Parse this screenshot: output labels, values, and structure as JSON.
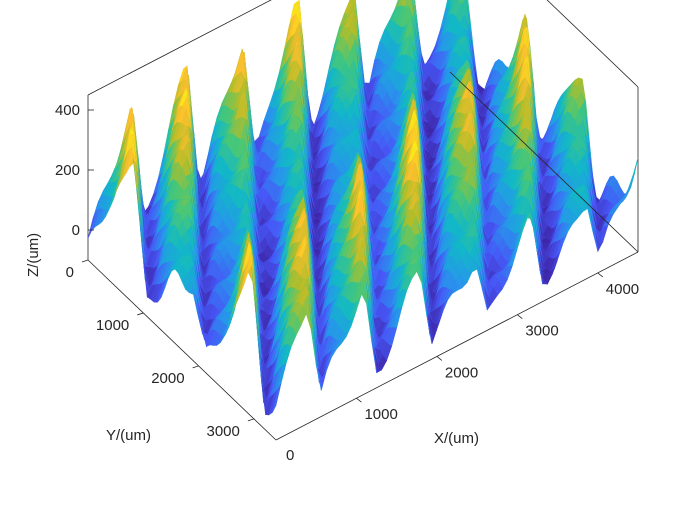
{
  "chart_data": {
    "type": "surface",
    "title": "",
    "xlabel": "X/(um)",
    "ylabel": "Y/(um)",
    "zlabel": "Z/(um)",
    "xlim": [
      0,
      4500
    ],
    "ylim": [
      0,
      3400
    ],
    "zlim": [
      -100,
      450
    ],
    "x_ticks": [
      1000,
      2000,
      3000,
      4000
    ],
    "x_tick_labels": [
      "1000",
      "2000",
      "3000",
      "4000"
    ],
    "y_ticks": [
      0,
      1000,
      2000,
      3000
    ],
    "y_tick_labels": [
      "0",
      "1000",
      "2000",
      "3000"
    ],
    "y_corner_label": "0",
    "z_ticks": [
      0,
      200,
      400
    ],
    "z_tick_labels": [
      "0",
      "200",
      "400"
    ],
    "colormap": "parula",
    "colors": {
      "low": "#3e26a8",
      "mid": "#20b2a8",
      "high": "#f9fb0e"
    },
    "surface": {
      "ridge_count_x": 6.5,
      "ridge_count_y": 3.2,
      "peak_height": 400,
      "baseline": -50
    },
    "grid": false,
    "legend": "none"
  }
}
